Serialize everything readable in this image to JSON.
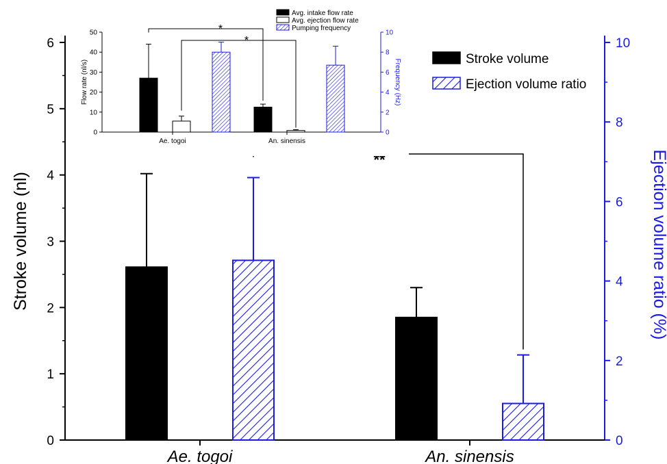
{
  "colors": {
    "black": "#000000",
    "blue": "#1a1ae6",
    "white": "#ffffff"
  },
  "chart_data": [
    {
      "type": "bar",
      "categories": [
        "Ae. togoi",
        "An. sinensis"
      ],
      "series": [
        {
          "name": "Stroke volume",
          "axis": "left",
          "fill": "solid-black",
          "values": [
            2.61,
            1.85
          ],
          "errors": [
            1.41,
            0.45
          ]
        },
        {
          "name": "Ejection volume ratio",
          "axis": "right",
          "fill": "blue-hatched",
          "values": [
            4.52,
            0.92
          ],
          "errors": [
            2.08,
            1.22
          ]
        }
      ],
      "ylabel": "Stroke volume (nl)",
      "ylim": [
        0,
        6
      ],
      "yticks": [
        "0",
        "1",
        "2",
        "3",
        "4",
        "5",
        "6"
      ],
      "y2label": "Ejection volume ratio (%)",
      "y2lim": [
        0,
        10
      ],
      "y2ticks": [
        "0",
        "2",
        "4",
        "6",
        "8",
        "10"
      ],
      "legend_position": "top-right",
      "annotations": [
        {
          "text": "**",
          "between": [
            "Ae. togoi / Ejection volume ratio",
            "An. sinensis / Ejection volume ratio"
          ]
        }
      ]
    },
    {
      "type": "bar",
      "inset": true,
      "legend_position": "top",
      "categories": [
        "Ae. togoi",
        "An. sinensis"
      ],
      "series": [
        {
          "name": "Avg. intake flow rate",
          "axis": "left",
          "fill": "solid-black",
          "values": [
            27,
            12.5
          ],
          "errors": [
            17,
            1.5
          ]
        },
        {
          "name": "Avg. ejection flow rate",
          "axis": "left",
          "fill": "white",
          "values": [
            5.5,
            0.8
          ],
          "errors": [
            2.5,
            0.4
          ]
        },
        {
          "name": "Pumping frequency",
          "axis": "right",
          "fill": "blue-hatched",
          "values": [
            8.0,
            6.7
          ],
          "errors": [
            1.0,
            1.9
          ]
        }
      ],
      "ylabel": "Flow rate (nl/s)",
      "ylim": [
        0,
        50
      ],
      "yticks": [
        "0",
        "10",
        "20",
        "30",
        "40",
        "50"
      ],
      "y2label": "Frequency (Hz)",
      "y2lim": [
        0,
        10
      ],
      "y2ticks": [
        "0",
        "2",
        "4",
        "6",
        "8",
        "10"
      ],
      "annotations": [
        {
          "text": "*",
          "between": [
            "Ae. togoi / Avg. intake flow rate",
            "An. sinensis / Avg. intake flow rate"
          ]
        },
        {
          "text": "*",
          "between": [
            "Ae. togoi / Avg. ejection flow rate",
            "An. sinensis / Avg. ejection flow rate"
          ]
        }
      ]
    }
  ]
}
